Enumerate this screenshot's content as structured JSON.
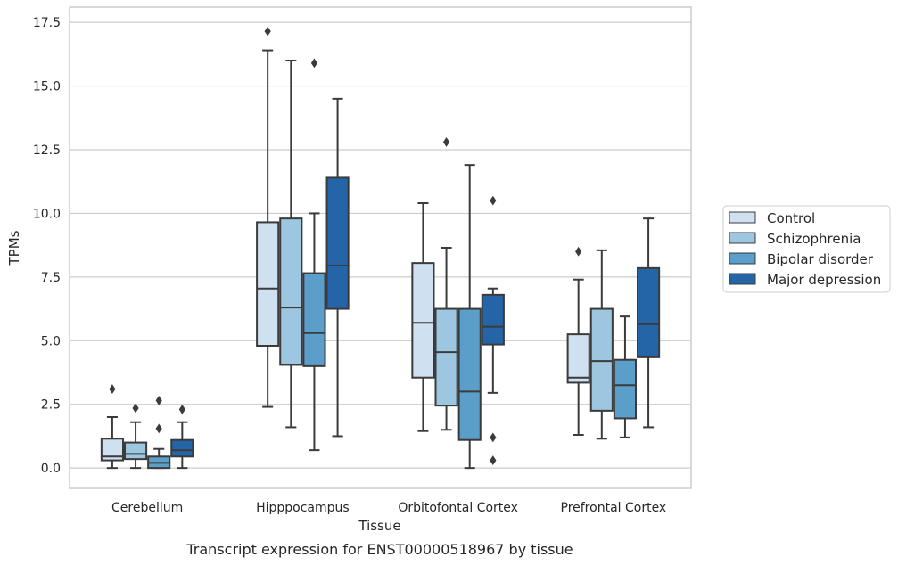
{
  "caption": "Transcript expression for ENST00000518967 by tissue",
  "chart_data": {
    "type": "box",
    "xlabel": "Tissue",
    "ylabel": "TPMs",
    "ylim": [
      -0.8,
      18.1
    ],
    "yticks": [
      "0.0",
      "2.5",
      "5.0",
      "7.5",
      "10.0",
      "12.5",
      "15.0",
      "17.5"
    ],
    "ytick_values": [
      0,
      2.5,
      5,
      7.5,
      10,
      12.5,
      15,
      17.5
    ],
    "grid": "horizontal",
    "legend_position": "right",
    "categories": [
      "Cerebellum",
      "Hipppocampus",
      "Orbitofontal Cortex",
      "Prefrontal Cortex"
    ],
    "series": [
      {
        "name": "Control",
        "color": "#cfe0f1",
        "boxes": [
          {
            "whisker_low": 0.0,
            "q1": 0.3,
            "median": 0.45,
            "q3": 1.15,
            "whisker_high": 2.0,
            "outliers": [
              3.1
            ]
          },
          {
            "whisker_low": 2.4,
            "q1": 4.8,
            "median": 7.05,
            "q3": 9.65,
            "whisker_high": 16.4,
            "outliers": [
              17.15
            ]
          },
          {
            "whisker_low": 1.45,
            "q1": 3.55,
            "median": 5.7,
            "q3": 8.05,
            "whisker_high": 10.4,
            "outliers": []
          },
          {
            "whisker_low": 1.3,
            "q1": 3.35,
            "median": 3.55,
            "q3": 5.25,
            "whisker_high": 7.4,
            "outliers": [
              8.5
            ]
          }
        ]
      },
      {
        "name": "Schizophrenia",
        "color": "#9dc7e0",
        "boxes": [
          {
            "whisker_low": 0.0,
            "q1": 0.35,
            "median": 0.55,
            "q3": 1.0,
            "whisker_high": 1.8,
            "outliers": [
              2.35
            ]
          },
          {
            "whisker_low": 1.6,
            "q1": 4.05,
            "median": 6.3,
            "q3": 9.8,
            "whisker_high": 16.0,
            "outliers": []
          },
          {
            "whisker_low": 1.5,
            "q1": 2.45,
            "median": 4.55,
            "q3": 6.25,
            "whisker_high": 8.65,
            "outliers": [
              12.8
            ]
          },
          {
            "whisker_low": 1.15,
            "q1": 2.25,
            "median": 4.2,
            "q3": 6.25,
            "whisker_high": 8.55,
            "outliers": []
          }
        ]
      },
      {
        "name": "Bipolar disorder",
        "color": "#5a9ec9",
        "boxes": [
          {
            "whisker_low": 0.0,
            "q1": 0.0,
            "median": 0.2,
            "q3": 0.45,
            "whisker_high": 0.75,
            "outliers": [
              1.55,
              2.65
            ]
          },
          {
            "whisker_low": 0.7,
            "q1": 4.0,
            "median": 5.3,
            "q3": 7.65,
            "whisker_high": 10.0,
            "outliers": [
              15.9
            ]
          },
          {
            "whisker_low": 0.0,
            "q1": 1.1,
            "median": 3.0,
            "q3": 6.25,
            "whisker_high": 11.9,
            "outliers": []
          },
          {
            "whisker_low": 1.2,
            "q1": 1.95,
            "median": 3.25,
            "q3": 4.25,
            "whisker_high": 5.95,
            "outliers": []
          }
        ]
      },
      {
        "name": "Major depression",
        "color": "#2465a8",
        "boxes": [
          {
            "whisker_low": 0.0,
            "q1": 0.45,
            "median": 0.7,
            "q3": 1.1,
            "whisker_high": 1.8,
            "outliers": [
              2.3
            ]
          },
          {
            "whisker_low": 1.25,
            "q1": 6.25,
            "median": 7.95,
            "q3": 11.4,
            "whisker_high": 14.5,
            "outliers": []
          },
          {
            "whisker_low": 2.95,
            "q1": 4.85,
            "median": 5.55,
            "q3": 6.8,
            "whisker_high": 7.05,
            "outliers": [
              10.5,
              1.2,
              0.3
            ]
          },
          {
            "whisker_low": 1.6,
            "q1": 4.35,
            "median": 5.65,
            "q3": 7.85,
            "whisker_high": 9.8,
            "outliers": []
          }
        ]
      }
    ]
  }
}
